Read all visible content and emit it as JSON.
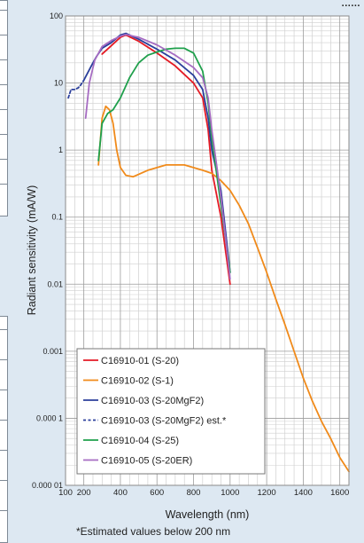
{
  "header_fragment": "......",
  "footnote": "*Estimated values below 200 nm",
  "chart_data": {
    "type": "line",
    "title": "",
    "xlabel": "Wavelength (nm)",
    "ylabel": "Radiant sensitivity (mA/W)",
    "x_scale": "linear",
    "y_scale": "log",
    "xlim": [
      100,
      1650
    ],
    "ylim": [
      1e-05,
      100
    ],
    "x_ticks": [
      100,
      200,
      400,
      600,
      800,
      1000,
      1200,
      1400,
      1600
    ],
    "y_ticks": [
      {
        "value": 1e-05,
        "label": "0.000 01"
      },
      {
        "value": 0.0001,
        "label": "0.000 1"
      },
      {
        "value": 0.001,
        "label": "0.001"
      },
      {
        "value": 0.01,
        "label": "0.01"
      },
      {
        "value": 0.1,
        "label": "0.1"
      },
      {
        "value": 1,
        "label": "1"
      },
      {
        "value": 10,
        "label": "10"
      },
      {
        "value": 100,
        "label": "100"
      }
    ],
    "grid": true,
    "legend_position": "bottom-left",
    "series": [
      {
        "name": "C16910-01 (S-20)",
        "color": "#e41a24",
        "style": "solid",
        "points": [
          [
            300,
            27
          ],
          [
            350,
            36
          ],
          [
            400,
            48
          ],
          [
            430,
            52
          ],
          [
            500,
            42
          ],
          [
            600,
            28
          ],
          [
            700,
            18
          ],
          [
            800,
            10
          ],
          [
            850,
            6
          ],
          [
            880,
            2
          ],
          [
            900,
            0.5
          ],
          [
            950,
            0.1
          ],
          [
            1000,
            0.01
          ]
        ]
      },
      {
        "name": "C16910-02 (S-1)",
        "color": "#f08a1a",
        "style": "solid",
        "points": [
          [
            280,
            0.6
          ],
          [
            300,
            3
          ],
          [
            320,
            4.5
          ],
          [
            340,
            4
          ],
          [
            360,
            2.5
          ],
          [
            380,
            1
          ],
          [
            400,
            0.55
          ],
          [
            430,
            0.42
          ],
          [
            470,
            0.4
          ],
          [
            550,
            0.5
          ],
          [
            650,
            0.6
          ],
          [
            750,
            0.6
          ],
          [
            850,
            0.5
          ],
          [
            900,
            0.45
          ],
          [
            950,
            0.35
          ],
          [
            1000,
            0.25
          ],
          [
            1050,
            0.15
          ],
          [
            1100,
            0.08
          ],
          [
            1150,
            0.035
          ],
          [
            1200,
            0.015
          ],
          [
            1250,
            0.006
          ],
          [
            1300,
            0.0025
          ],
          [
            1350,
            0.001
          ],
          [
            1400,
            0.0004
          ],
          [
            1450,
            0.00018
          ],
          [
            1500,
            9e-05
          ],
          [
            1550,
            5e-05
          ],
          [
            1600,
            2.6e-05
          ],
          [
            1650,
            1.6e-05
          ]
        ]
      },
      {
        "name": "C16910-03 (S-20MgF2)",
        "color": "#2b3f9c",
        "style": "solid",
        "points": [
          [
            200,
            11
          ],
          [
            220,
            14
          ],
          [
            250,
            20
          ],
          [
            270,
            25
          ],
          [
            300,
            33
          ],
          [
            350,
            40
          ],
          [
            400,
            52
          ],
          [
            430,
            55
          ],
          [
            500,
            45
          ],
          [
            600,
            32
          ],
          [
            700,
            22
          ],
          [
            800,
            13
          ],
          [
            850,
            8
          ],
          [
            880,
            3
          ],
          [
            900,
            1
          ],
          [
            950,
            0.25
          ],
          [
            1000,
            0.015
          ]
        ]
      },
      {
        "name": "C16910-03 (S-20MgF2) est.*",
        "color": "#2b3f9c",
        "style": "dashed",
        "points": [
          [
            115,
            6
          ],
          [
            130,
            8
          ],
          [
            150,
            8
          ],
          [
            170,
            8.5
          ],
          [
            185,
            9.5
          ],
          [
            200,
            11
          ]
        ]
      },
      {
        "name": "C16910-04 (S-25)",
        "color": "#1fa04c",
        "style": "solid",
        "points": [
          [
            280,
            0.7
          ],
          [
            300,
            2.5
          ],
          [
            330,
            3.5
          ],
          [
            360,
            4
          ],
          [
            400,
            6
          ],
          [
            450,
            12
          ],
          [
            500,
            20
          ],
          [
            550,
            26
          ],
          [
            600,
            29
          ],
          [
            650,
            32
          ],
          [
            700,
            33
          ],
          [
            750,
            33
          ],
          [
            800,
            28
          ],
          [
            850,
            15
          ],
          [
            880,
            5
          ],
          [
            900,
            1.5
          ],
          [
            950,
            0.15
          ],
          [
            1000,
            0.015
          ]
        ]
      },
      {
        "name": "C16910-05 (S-20ER)",
        "color": "#a66cc2",
        "style": "solid",
        "points": [
          [
            210,
            3
          ],
          [
            230,
            10
          ],
          [
            260,
            22
          ],
          [
            300,
            35
          ],
          [
            350,
            43
          ],
          [
            400,
            50
          ],
          [
            430,
            53
          ],
          [
            500,
            48
          ],
          [
            600,
            37
          ],
          [
            700,
            26
          ],
          [
            800,
            17
          ],
          [
            850,
            12
          ],
          [
            880,
            6
          ],
          [
            900,
            2
          ],
          [
            950,
            0.2
          ],
          [
            1000,
            0.012
          ]
        ]
      }
    ]
  }
}
